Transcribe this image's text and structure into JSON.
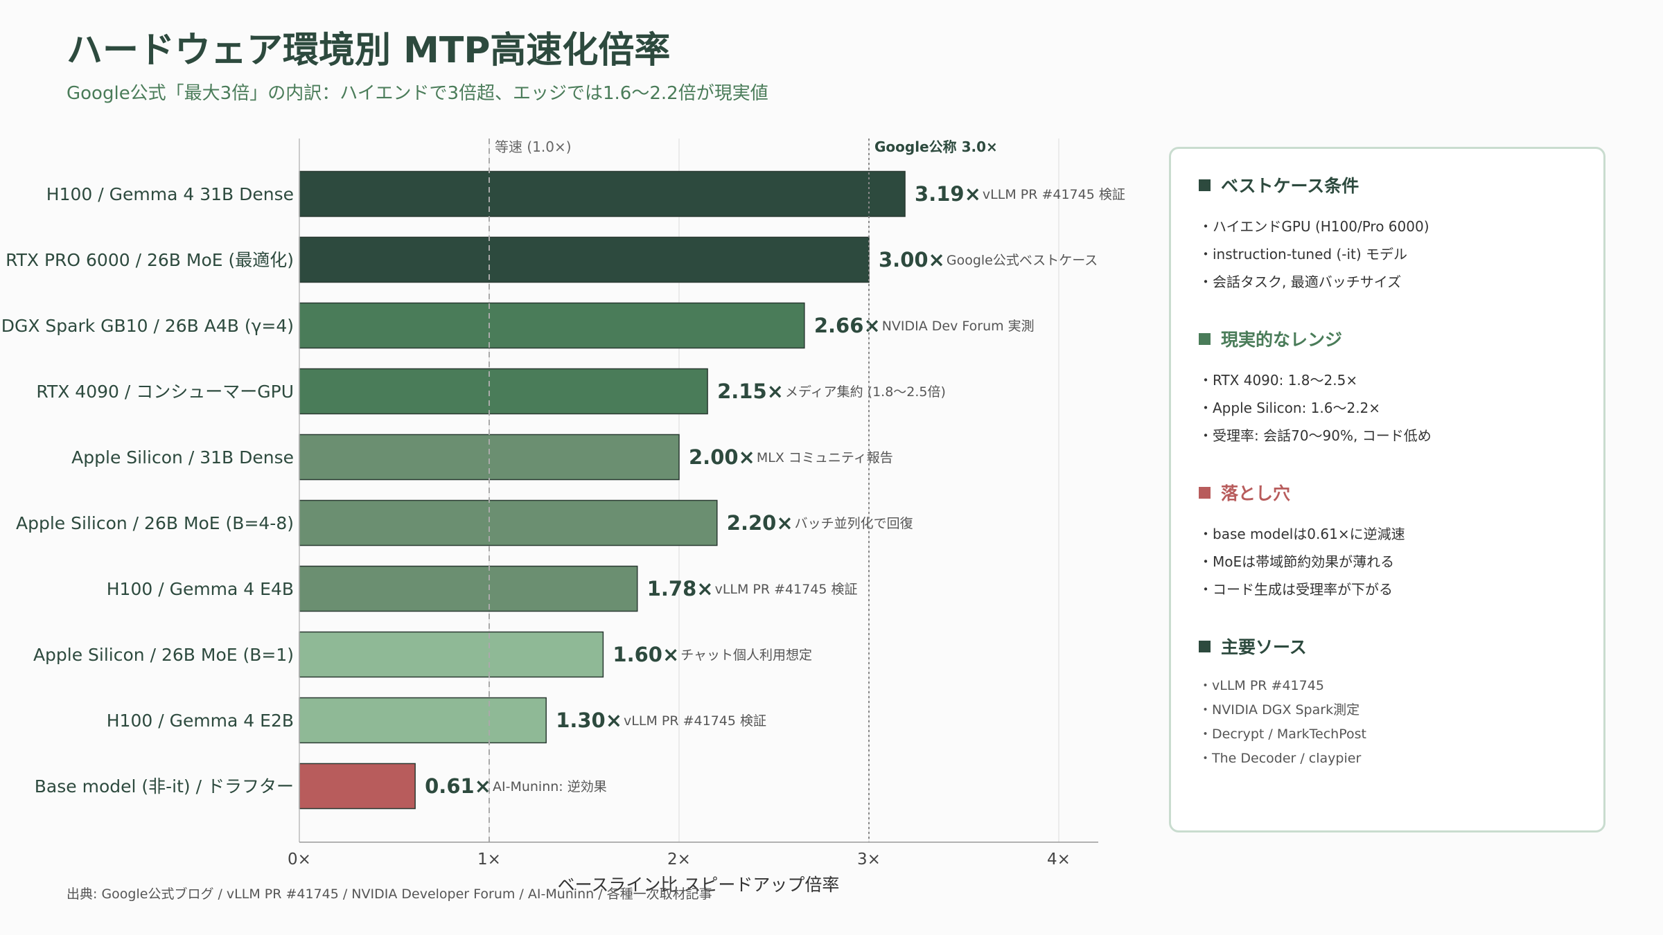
{
  "title": "ハードウェア環境別 MTP高速化倍率",
  "subtitle": "Google公式「最大3倍」の内訳：ハイエンドで3倍超、エッジでは1.6〜2.2倍が現実値",
  "source_note": "出典: Google公式ブログ / vLLM PR #41745 / NVIDIA Developer Forum / AI-Muninn / 各種一次取材記事",
  "colors": {
    "dark": "#2d4a3e",
    "medium": "#4a7c59",
    "light": "#6b8f71",
    "pale": "#8fb996",
    "red": "#b85c5c"
  },
  "chart_data": {
    "type": "bar",
    "orientation": "horizontal",
    "categories": [
      "H100 / Gemma 4 31B Dense",
      "RTX PRO 6000 / 26B MoE (最適化)",
      "DGX Spark GB10 / 26B A4B (γ=4)",
      "RTX 4090 / コンシューマーGPU",
      "Apple Silicon / 31B Dense",
      "Apple Silicon / 26B MoE (B=4-8)",
      "H100 / Gemma 4 E4B",
      "Apple Silicon / 26B MoE (B=1)",
      "H100 / Gemma 4 E2B",
      "Base model (非-it) / ドラフター"
    ],
    "values": [
      3.19,
      3.0,
      2.66,
      2.15,
      2.0,
      2.2,
      1.78,
      1.6,
      1.3,
      0.61
    ],
    "value_labels": [
      "3.19×",
      "3.00×",
      "2.66×",
      "2.15×",
      "2.00×",
      "2.20×",
      "1.78×",
      "1.60×",
      "1.30×",
      "0.61×"
    ],
    "annotations": [
      "vLLM PR #41745 検証",
      "Google公式ベストケース",
      "NVIDIA Dev Forum 実測",
      "メディア集約 (1.8〜2.5倍)",
      "MLX コミュニティ報告",
      "バッチ並列化で回復",
      "vLLM PR #41745 検証",
      "チャット個人利用想定",
      "vLLM PR #41745 検証",
      "AI-Muninn: 逆効果"
    ],
    "bar_colors": [
      "#2d4a3e",
      "#2d4a3e",
      "#4a7c59",
      "#4a7c59",
      "#6b8f71",
      "#6b8f71",
      "#6b8f71",
      "#8fb996",
      "#8fb996",
      "#b85c5c"
    ],
    "xlabel": "ベースライン比 スピードアップ倍率",
    "ylabel": "",
    "xlim": [
      0,
      4.2
    ],
    "xticks": [
      0,
      1,
      2,
      3,
      4
    ],
    "xtick_labels": [
      "0×",
      "1×",
      "2×",
      "3×",
      "4×"
    ],
    "reference_lines": [
      {
        "x": 1.0,
        "label": "等速 (1.0×)",
        "style": "dashed"
      },
      {
        "x": 3.0,
        "label": "Google公称 3.0×",
        "style": "dotted"
      }
    ],
    "grid": "vertical"
  },
  "panel": {
    "sections": [
      {
        "title": "ベストケース条件",
        "color": "#2d4a3e",
        "items": [
          "・ハイエンドGPU (H100/Pro 6000)",
          "・instruction-tuned (-it) モデル",
          "・会話タスク, 最適バッチサイズ"
        ]
      },
      {
        "title": "現実的なレンジ",
        "color": "#4a7c59",
        "items": [
          "・RTX 4090: 1.8〜2.5×",
          "・Apple Silicon: 1.6〜2.2×",
          "・受理率: 会話70〜90%, コード低め"
        ]
      },
      {
        "title": "落とし穴",
        "color": "#b85c5c",
        "items": [
          "・base modelは0.61×に逆減速",
          "・MoEは帯域節約効果が薄れる",
          "・コード生成は受理率が下がる"
        ]
      },
      {
        "title": "主要ソース",
        "color": "#2d4a3e",
        "items": [
          "・vLLM PR #41745",
          "・NVIDIA DGX Spark測定",
          "・Decrypt / MarkTechPost",
          "・The Decoder / claypier"
        ]
      }
    ]
  }
}
